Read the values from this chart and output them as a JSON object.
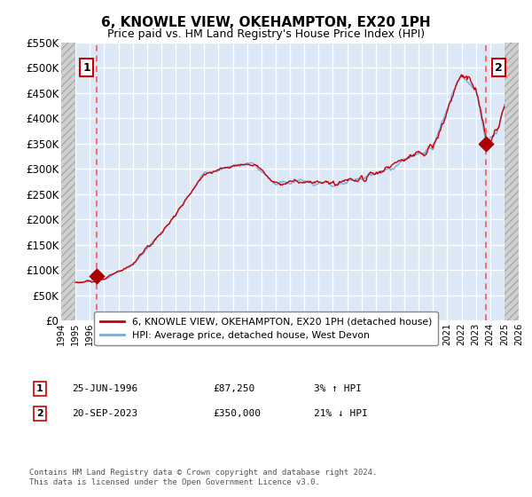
{
  "title": "6, KNOWLE VIEW, OKEHAMPTON, EX20 1PH",
  "subtitle": "Price paid vs. HM Land Registry's House Price Index (HPI)",
  "red_line_label": "6, KNOWLE VIEW, OKEHAMPTON, EX20 1PH (detached house)",
  "blue_line_label": "HPI: Average price, detached house, West Devon",
  "sale1_date": 1996.49,
  "sale1_price": 87250,
  "sale1_label": "1",
  "sale1_annotation": "25-JUN-1996",
  "sale1_price_str": "£87,250",
  "sale1_hpi_str": "3% ↑ HPI",
  "sale2_date": 2023.72,
  "sale2_price": 350000,
  "sale2_label": "2",
  "sale2_annotation": "20-SEP-2023",
  "sale2_price_str": "£350,000",
  "sale2_hpi_str": "21% ↓ HPI",
  "xmin": 1994.0,
  "xmax": 2026.0,
  "ymin": 0,
  "ymax": 550000,
  "data_xstart": 1995.0,
  "data_xend": 2025.0,
  "plot_bg_color": "#dce8f5",
  "hatch_bg_color": "#e8e8e8",
  "grid_color": "#ffffff",
  "red_line_color": "#cc0000",
  "blue_line_color": "#7aaadd",
  "dashed_line_color": "#ff5555",
  "sale_dot_color": "#aa0000",
  "box_edge_color": "#cc0000",
  "footnote": "Contains HM Land Registry data © Crown copyright and database right 2024.\nThis data is licensed under the Open Government Licence v3.0."
}
